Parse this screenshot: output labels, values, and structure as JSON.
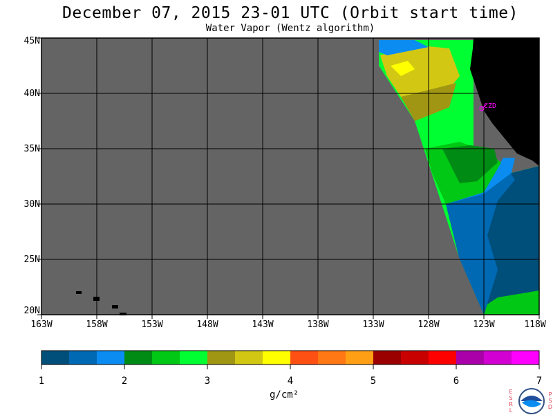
{
  "title": "December 07, 2015  23-01 UTC  (Orbit start time)",
  "subtitle": "Water Vapor (Wentz algorithm)",
  "map": {
    "lat_labels": [
      "45N",
      "40N",
      "35N",
      "30N",
      "25N",
      "20N"
    ],
    "lon_labels": [
      "163W",
      "158W",
      "153W",
      "148W",
      "143W",
      "138W",
      "133W",
      "128W",
      "123W",
      "118W"
    ],
    "station_label": "CZD",
    "colors": {
      "no_data": "#646464",
      "land": "#000000",
      "grid": "#000000",
      "station": "#ff00ff"
    }
  },
  "colorbar": {
    "tick_labels": [
      "1",
      "2",
      "3",
      "4",
      "5",
      "6",
      "7"
    ],
    "units_label": "g/cm²",
    "colors": [
      "#004f7a",
      "#0069b4",
      "#0a8cf0",
      "#008c14",
      "#00c814",
      "#00ff32",
      "#a09614",
      "#d2c814",
      "#ffff00",
      "#ff5014",
      "#ff7814",
      "#ffa014",
      "#9b0000",
      "#c80000",
      "#ff0000",
      "#aa00aa",
      "#d200d2",
      "#ff00ff"
    ]
  },
  "logo": {
    "left_letters": "ESRL",
    "right_letters": "PSD",
    "name": "noaa-logo"
  }
}
